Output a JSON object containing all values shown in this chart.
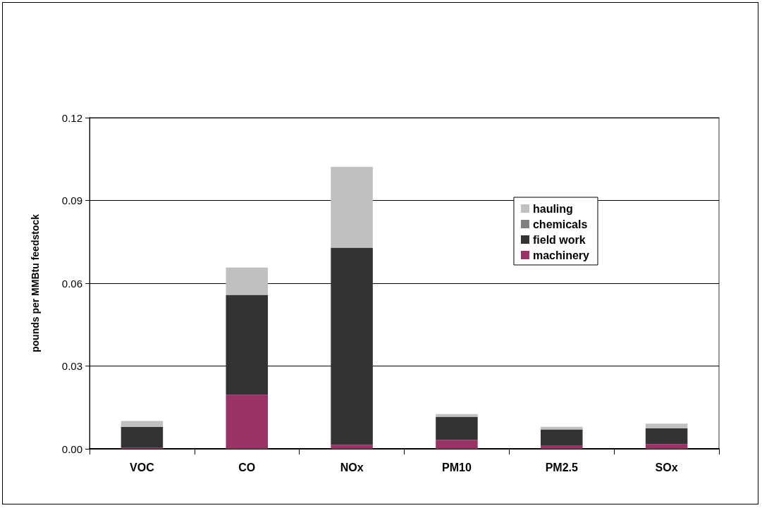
{
  "chart_data": {
    "type": "bar",
    "ylabel": "pounds per MMBtu feedstock",
    "categories": [
      "VOC",
      "CO",
      "NOx",
      "PM10",
      "PM2.5",
      "SOx"
    ],
    "stacked": true,
    "series": [
      {
        "name": "machinery",
        "color": "#993366",
        "values": [
          0.0003,
          0.0196,
          0.0014,
          0.0032,
          0.0011,
          0.0017
        ]
      },
      {
        "name": "field work",
        "color": "#333333",
        "values": [
          0.0077,
          0.0362,
          0.0715,
          0.0084,
          0.0059,
          0.0058
        ]
      },
      {
        "name": "chemicals",
        "color": "#808080",
        "values": [
          0,
          0,
          0,
          0,
          0,
          0
        ]
      },
      {
        "name": "hauling",
        "color": "#c0c0c0",
        "values": [
          0.0021,
          0.0099,
          0.0293,
          0.001,
          0.001,
          0.0016
        ]
      }
    ],
    "ylim": [
      0,
      0.12
    ],
    "yticks": [
      {
        "value": 0,
        "label": "0.00"
      },
      0.03,
      0.06,
      0.09,
      0.12
    ],
    "grid": "y",
    "legend": "right"
  }
}
